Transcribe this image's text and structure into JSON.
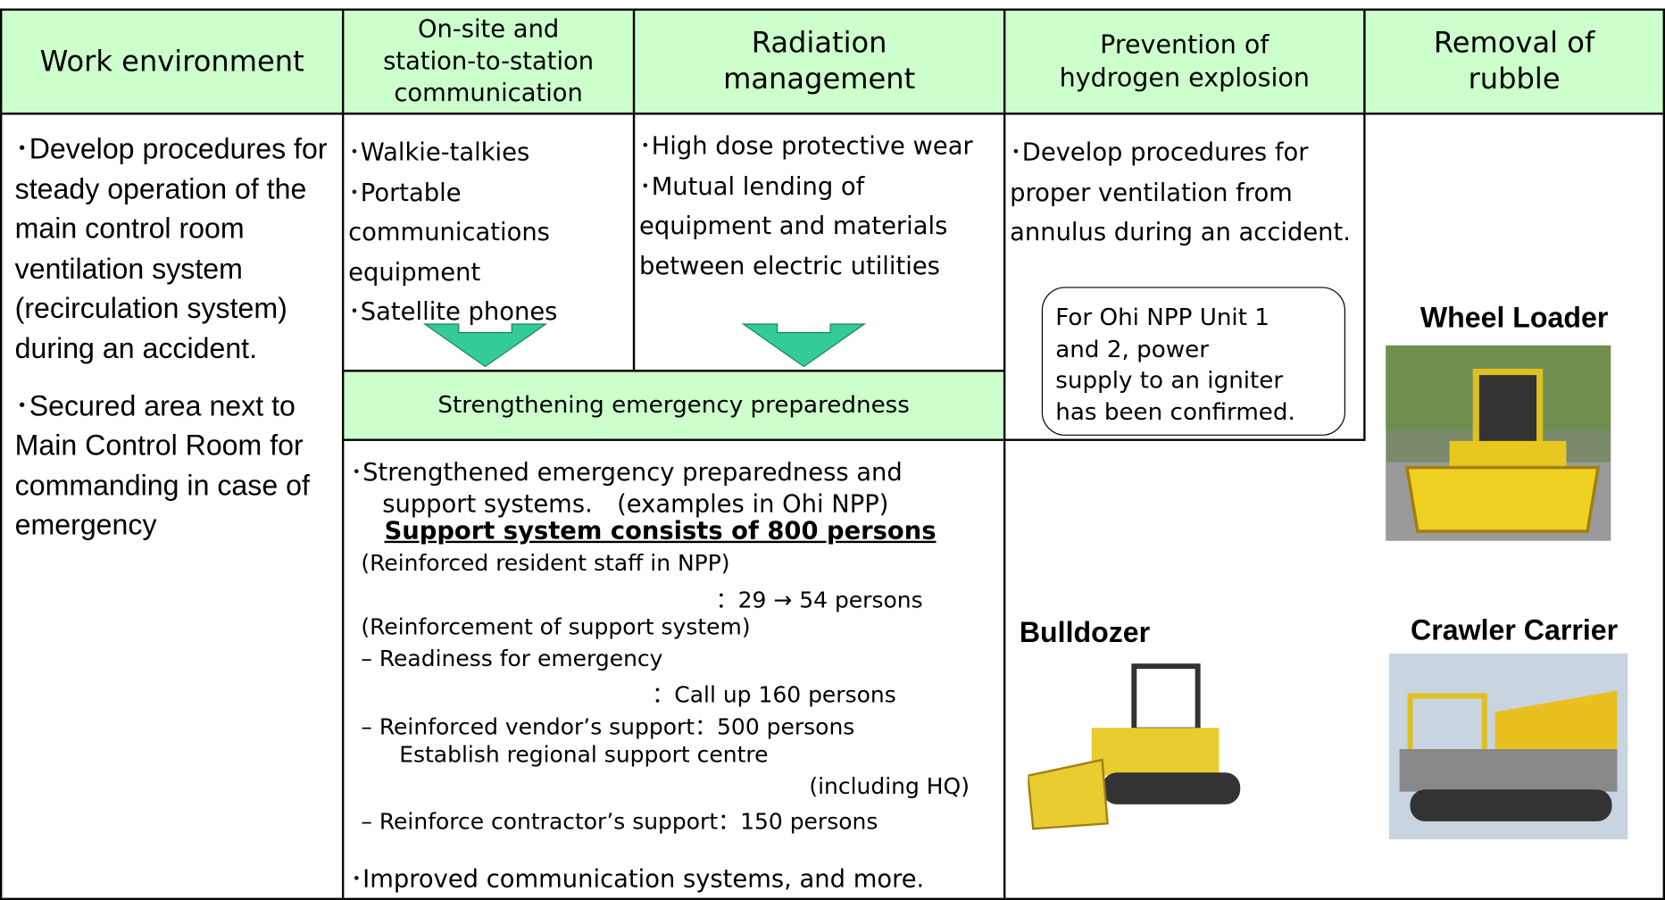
{
  "header": {
    "columns": [
      "Work environment",
      "On-site and\nstation-to-station\ncommunication",
      "Radiation\nmanagement",
      "Prevention of\nhydrogen explosion",
      "Removal of\nrubble"
    ]
  },
  "work_environment": [
    "･Develop procedures for steady operation of the main control room ventilation system (recirculation system) during an accident.",
    "･Secured area next to Main Control Room for commanding in case of emergency"
  ],
  "communication": [
    "･Walkie-talkies",
    "･Portable communications equipment",
    "･Satellite phones"
  ],
  "radiation": [
    "･High dose protective wear",
    "･Mutual lending of equipment and materials between electric utilities"
  ],
  "emergency": {
    "title": "Strengthening emergency preparedness",
    "lines": [
      "･Strengthened emergency preparedness and",
      "support systems.　(examples in Ohi NPP)",
      "Support system consists of 800 persons",
      "(Reinforced resident staff in NPP)",
      "：29 → 54 persons",
      "(Reinforcement of support system)",
      "– Readiness for emergency",
      "：Call up 160 persons",
      "– Reinforced vendor’s support：500 persons",
      "Establish regional support centre",
      "(including HQ)",
      "– Reinforce contractor’s support：150 persons",
      "･Improved communication systems, and more."
    ]
  },
  "hydrogen": {
    "text": "･Develop procedures for proper ventilation from annulus during an accident.",
    "note": "For Ohi NPP Unit 1\nand 2, power\nsupply to an igniter\nhas been confirmed."
  },
  "rubble": {
    "items": [
      "Wheel Loader",
      "Bulldozer",
      "Crawler Carrier"
    ]
  }
}
